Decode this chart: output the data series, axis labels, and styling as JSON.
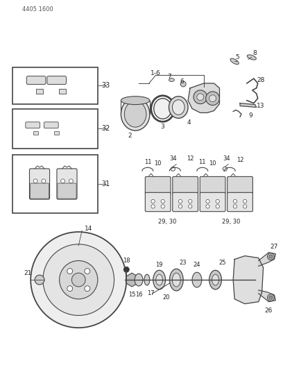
{
  "bg_color": "#ffffff",
  "line_color": "#444444",
  "text_color": "#333333",
  "header_text": "4405 1600",
  "fig_width": 4.08,
  "fig_height": 5.33,
  "dpi": 100
}
